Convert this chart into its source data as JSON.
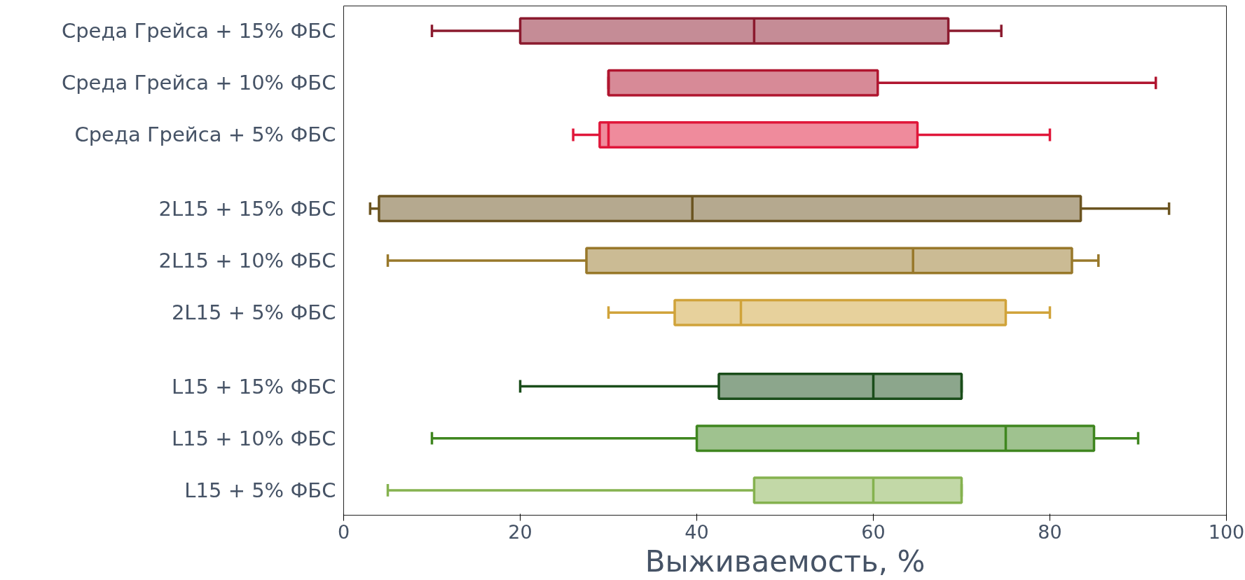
{
  "chart_data": {
    "type": "box",
    "orientation": "horizontal",
    "xlabel": "Выживаемость, %",
    "xlim": [
      0,
      100
    ],
    "xticks": [
      0,
      20,
      40,
      60,
      80,
      100
    ],
    "grid": false,
    "categories": [
      "Среда Грейса + 15% ФБС",
      "Среда Грейса + 10% ФБС",
      "Среда Грейса + 5% ФБС",
      "2L15 + 15% ФБС",
      "2L15 + 10% ФБС",
      "2L15 + 5% ФБС",
      "L15 + 15% ФБС",
      "L15 + 10% ФБС",
      "L15 + 5% ФБС"
    ],
    "colors": [
      "#8b1a2e",
      "#b0152f",
      "#e0173a",
      "#6b5420",
      "#98782a",
      "#d0a33a",
      "#1a4d1a",
      "#3f861f",
      "#85b24f"
    ],
    "boxes": [
      {
        "low": 10,
        "q1": 20,
        "median": 46.5,
        "q3": 68.5,
        "high": 74.5
      },
      {
        "low": 30,
        "q1": 30,
        "median": 30,
        "q3": 60.5,
        "high": 92
      },
      {
        "low": 26,
        "q1": 29,
        "median": 30,
        "q3": 65,
        "high": 80
      },
      {
        "low": 3,
        "q1": 4,
        "median": 39.5,
        "q3": 83.5,
        "high": 93.5
      },
      {
        "low": 5,
        "q1": 27.5,
        "median": 64.5,
        "q3": 82.5,
        "high": 85.5
      },
      {
        "low": 30,
        "q1": 37.5,
        "median": 45,
        "q3": 75,
        "high": 80
      },
      {
        "low": 20,
        "q1": 42.5,
        "median": 60,
        "q3": 70,
        "high": 70
      },
      {
        "low": 10,
        "q1": 40,
        "median": 75,
        "q3": 85,
        "high": 90
      },
      {
        "low": 5,
        "q1": 46.5,
        "median": 60,
        "q3": 70,
        "high": 70
      }
    ]
  }
}
